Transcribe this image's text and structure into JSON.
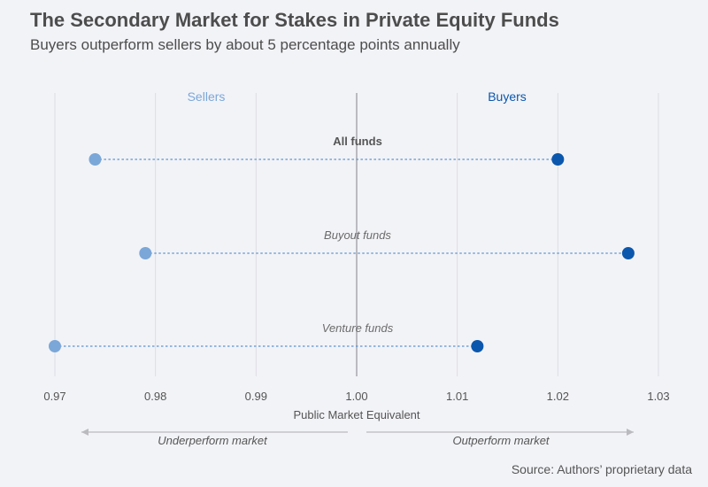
{
  "title": "The Secondary Market for Stakes in Private Equity Funds",
  "subtitle": "Buyers outperform sellers by about 5 percentage points annually",
  "source": "Source: Authors’ proprietary data",
  "colors": {
    "sellers": "#7ba7d8",
    "buyers": "#0b57ad",
    "grid": "#dcdde3",
    "axis_line": "#a8a8ad",
    "connector": "#5c93d0",
    "arrow": "#bbbbbf",
    "text": "#555555"
  },
  "chart_data": {
    "type": "scatter",
    "title": "",
    "xlabel": "Public Market Equivalent",
    "ylabel": "",
    "xlim": [
      0.97,
      1.03
    ],
    "x_ticks": [
      "0.97",
      "0.98",
      "0.99",
      "1.00",
      "1.01",
      "1.02",
      "1.03"
    ],
    "x_tick_values": [
      0.97,
      0.98,
      0.99,
      1.0,
      1.01,
      1.02,
      1.03
    ],
    "reference_line": 1.0,
    "grid": true,
    "legend": {
      "placement": "top",
      "entries": [
        {
          "name": "Sellers",
          "side": "left"
        },
        {
          "name": "Buyers",
          "side": "right"
        }
      ]
    },
    "categories": [
      "All funds",
      "Buyout funds",
      "Venture funds"
    ],
    "category_styles": [
      "bold",
      "italic",
      "italic"
    ],
    "series": [
      {
        "name": "Sellers",
        "values": [
          0.974,
          0.979,
          0.97
        ]
      },
      {
        "name": "Buyers",
        "values": [
          1.02,
          1.027,
          1.012
        ]
      }
    ],
    "annotations": {
      "left": "Underperform market",
      "right": "Outperform market"
    }
  }
}
